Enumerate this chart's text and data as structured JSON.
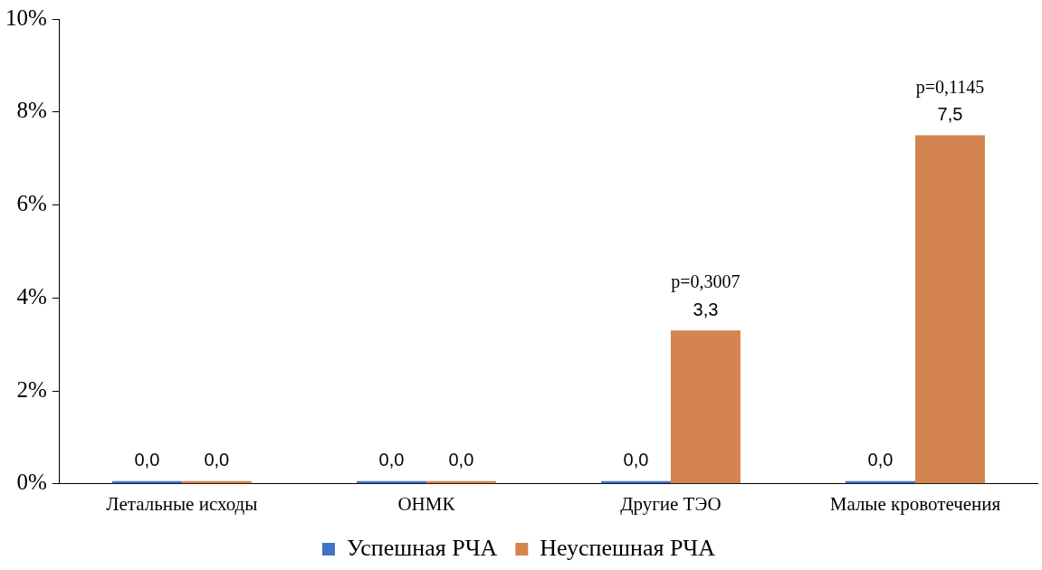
{
  "chart_data": {
    "type": "bar",
    "categories": [
      "Летальные исходы",
      "ОНМК",
      "Другие ТЭО",
      "Малые кровотечения"
    ],
    "series": [
      {
        "name": "Успешная РЧА",
        "color": "#4472c4",
        "values": [
          0,
          0,
          0,
          0
        ],
        "value_labels": [
          "0,0",
          "0,0",
          "0,0",
          "0,0"
        ]
      },
      {
        "name": "Неуспешная РЧА",
        "color": "#d4844e",
        "values": [
          0,
          0,
          3.3,
          7.5
        ],
        "value_labels": [
          "0,0",
          "0,0",
          "3,3",
          "7,5"
        ]
      }
    ],
    "ylim": [
      0,
      10
    ],
    "yticks": [
      {
        "value": 0,
        "label": "0%"
      },
      {
        "value": 2,
        "label": "2%"
      },
      {
        "value": 4,
        "label": "4%"
      },
      {
        "value": 6,
        "label": "6%"
      },
      {
        "value": 8,
        "label": "8%"
      },
      {
        "value": 10,
        "label": "10%"
      }
    ],
    "grid": false,
    "legend": "bottom",
    "annotations": [
      "p=0,3007",
      "p=0,1145"
    ]
  }
}
